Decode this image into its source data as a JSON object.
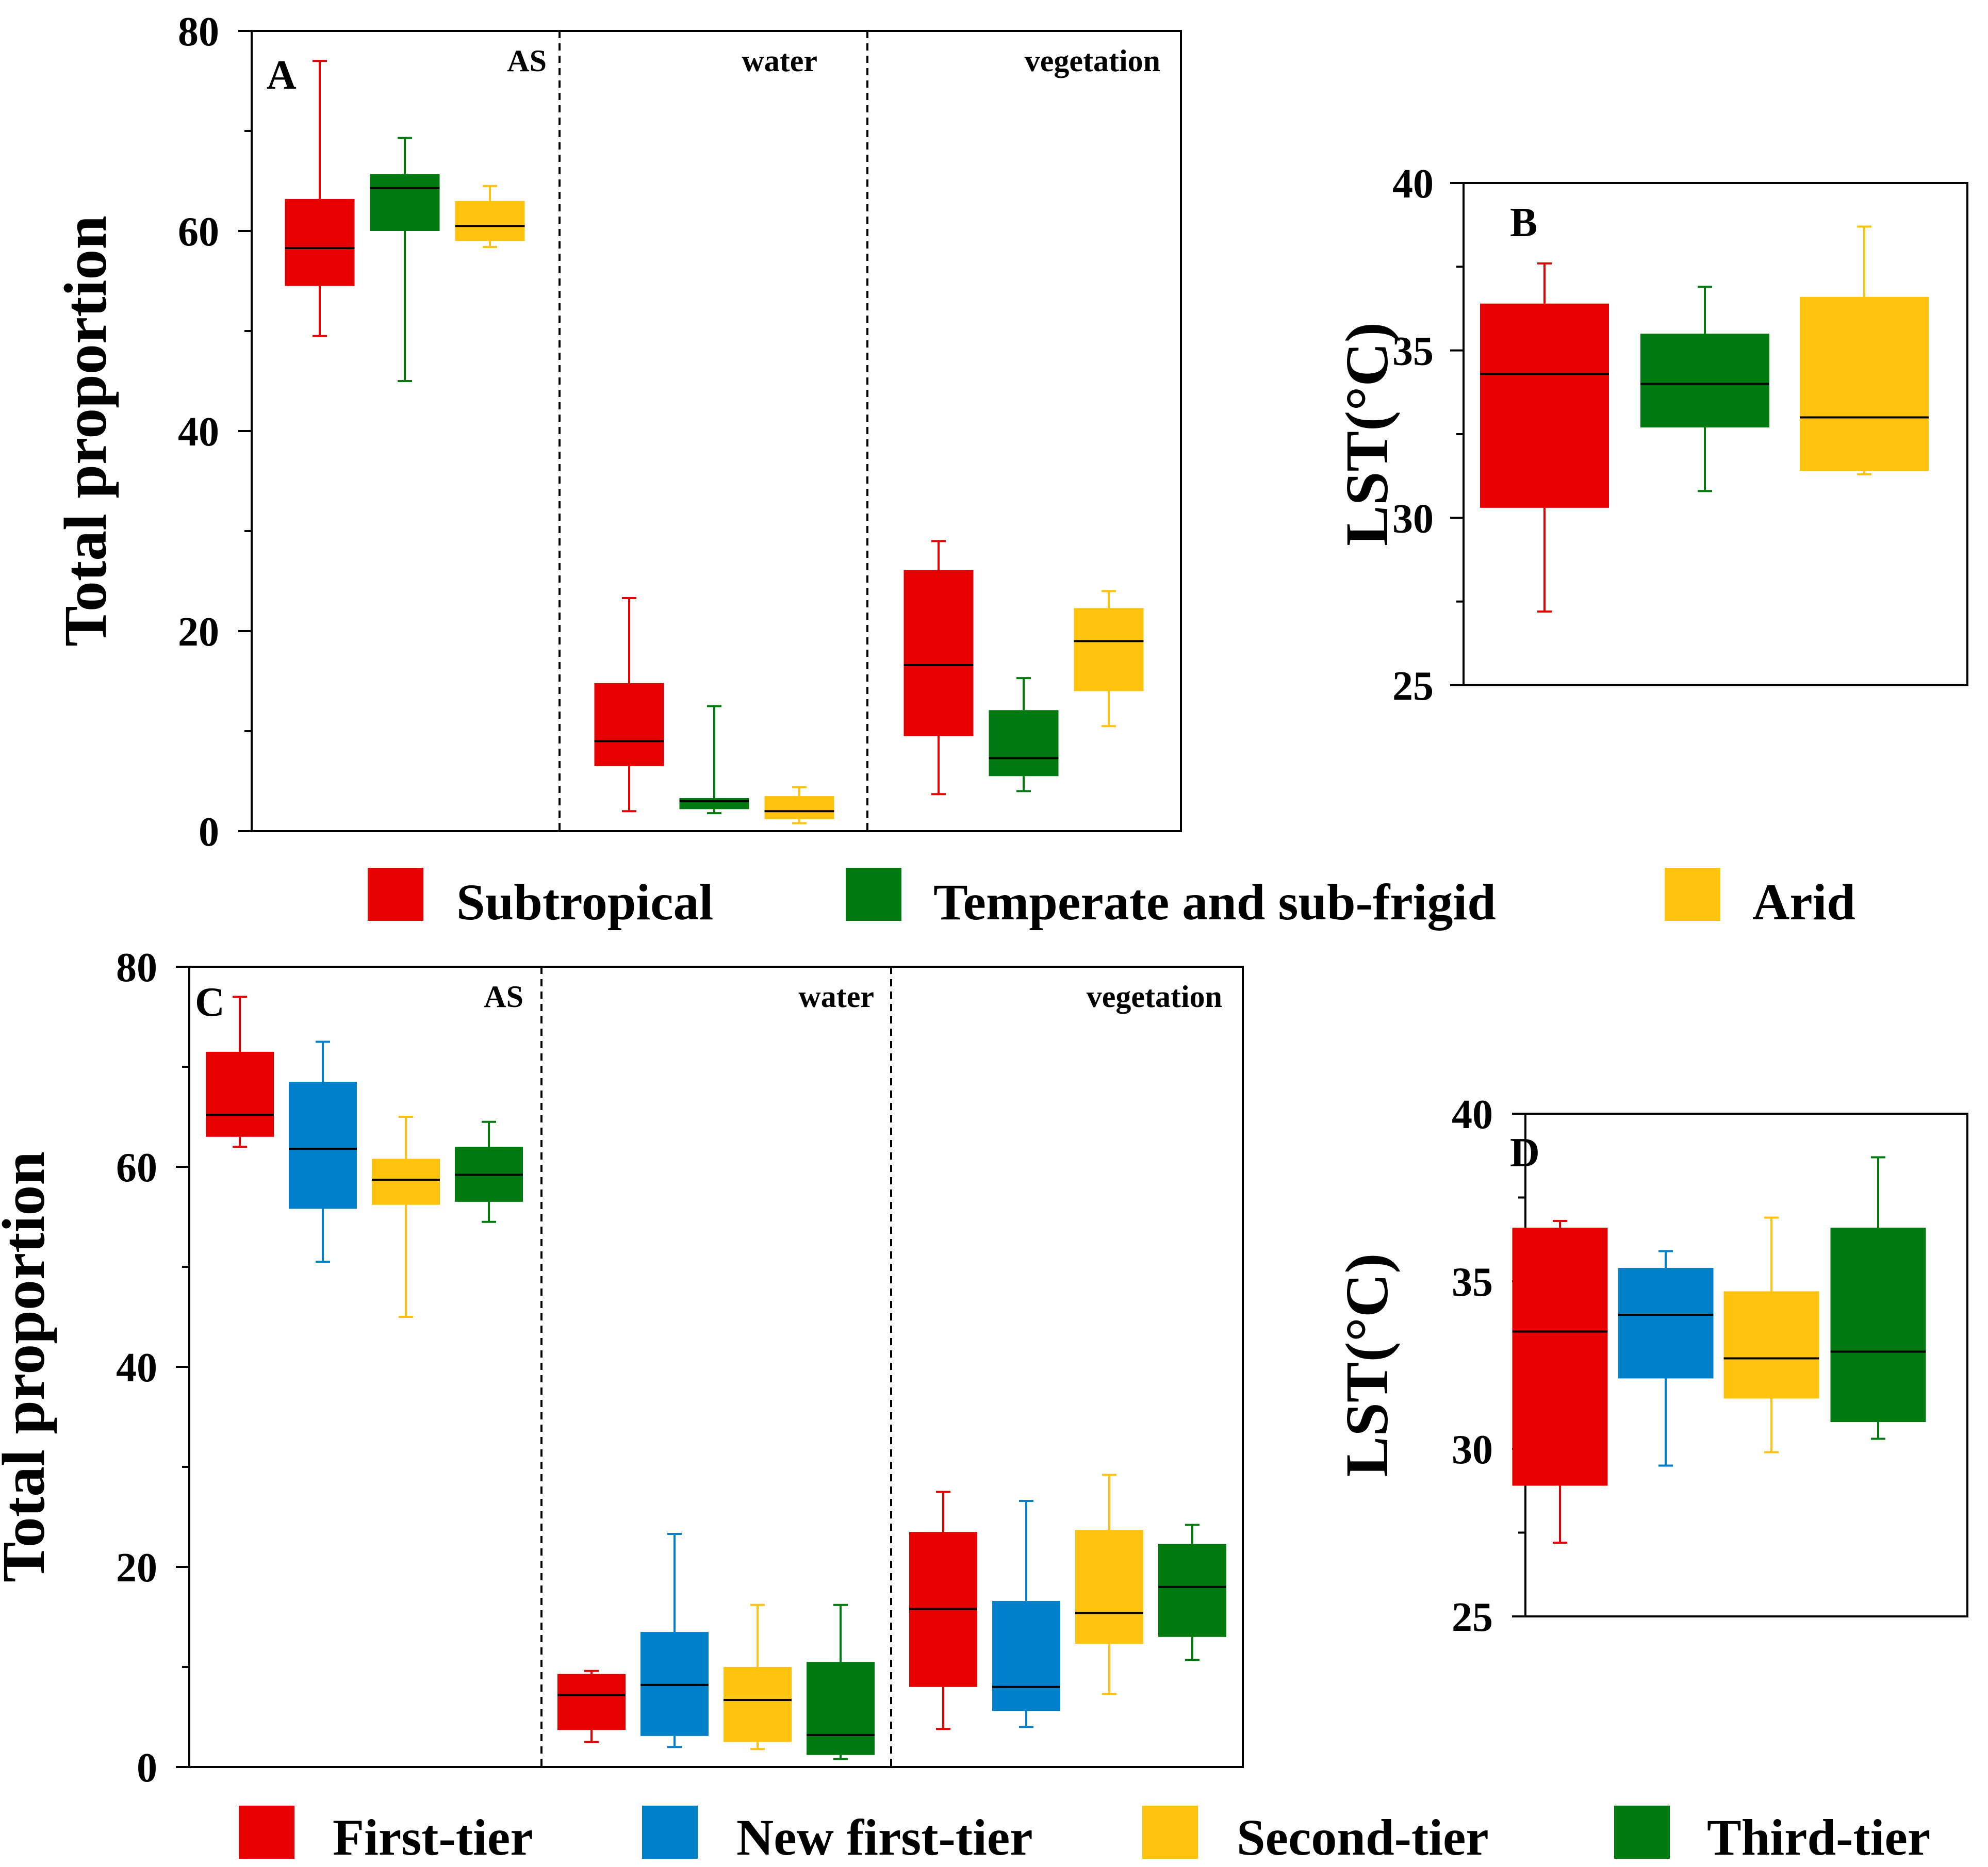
{
  "chart_data": [
    {
      "panel": "A",
      "type": "box",
      "ylabel": "Total proportion",
      "ylim": [
        0,
        80
      ],
      "yticks": [
        "0",
        "20",
        "40",
        "60",
        "80"
      ],
      "sections": [
        "AS",
        "water",
        "vegetation"
      ],
      "series": [
        {
          "name": "Subtropical",
          "color": "#E60000",
          "boxes": [
            {
              "section": "AS",
              "min": 49.5,
              "q1": 54.5,
              "median": 58.3,
              "q3": 63.2,
              "max": 77.0
            },
            {
              "section": "water",
              "min": 2.0,
              "q1": 6.5,
              "median": 9.0,
              "q3": 14.8,
              "max": 23.3
            },
            {
              "section": "vegetation",
              "min": 3.7,
              "q1": 9.5,
              "median": 16.6,
              "q3": 26.1,
              "max": 29.0
            }
          ]
        },
        {
          "name": "Temperate and sub-frigid",
          "color": "#007A0F",
          "boxes": [
            {
              "section": "AS",
              "min": 45.0,
              "q1": 60.0,
              "median": 64.3,
              "q3": 65.7,
              "max": 69.3
            },
            {
              "section": "water",
              "min": 1.8,
              "q1": 2.2,
              "median": 3.0,
              "q3": 3.3,
              "max": 12.5
            },
            {
              "section": "vegetation",
              "min": 4.0,
              "q1": 5.5,
              "median": 7.3,
              "q3": 12.1,
              "max": 15.3
            }
          ]
        },
        {
          "name": "Arid",
          "color": "#FFC20E",
          "boxes": [
            {
              "section": "AS",
              "min": 58.4,
              "q1": 59.0,
              "median": 60.5,
              "q3": 63.0,
              "max": 64.5
            },
            {
              "section": "water",
              "min": 0.8,
              "q1": 1.2,
              "median": 2.0,
              "q3": 3.5,
              "max": 4.4
            },
            {
              "section": "vegetation",
              "min": 10.5,
              "q1": 14.0,
              "median": 19.0,
              "q3": 22.3,
              "max": 24.0
            }
          ]
        }
      ]
    },
    {
      "panel": "B",
      "type": "box",
      "ylabel": "LST(°C)",
      "ylim": [
        25,
        40
      ],
      "yticks": [
        "25",
        "30",
        "35",
        "40"
      ],
      "series": [
        {
          "name": "Subtropical",
          "color": "#E60000",
          "box": {
            "min": 27.2,
            "q1": 30.3,
            "median": 34.3,
            "q3": 36.4,
            "max": 37.6
          }
        },
        {
          "name": "Temperate and sub-frigid",
          "color": "#007A0F",
          "box": {
            "min": 30.8,
            "q1": 32.7,
            "median": 34.0,
            "q3": 35.5,
            "max": 36.9
          }
        },
        {
          "name": "Arid",
          "color": "#FFC20E",
          "box": {
            "min": 31.3,
            "q1": 31.4,
            "median": 33.0,
            "q3": 36.6,
            "max": 38.7
          }
        }
      ]
    },
    {
      "panel": "C",
      "type": "box",
      "ylabel": "Total proportion",
      "ylim": [
        0,
        80
      ],
      "yticks": [
        "0",
        "20",
        "40",
        "60",
        "80"
      ],
      "sections": [
        "AS",
        "water",
        "vegetation"
      ],
      "series": [
        {
          "name": "First-tier",
          "color": "#E60000",
          "boxes": [
            {
              "section": "AS",
              "min": 62.0,
              "q1": 63.0,
              "median": 65.2,
              "q3": 71.5,
              "max": 77.0
            },
            {
              "section": "water",
              "min": 2.5,
              "q1": 3.7,
              "median": 7.2,
              "q3": 9.3,
              "max": 9.6
            },
            {
              "section": "vegetation",
              "min": 3.8,
              "q1": 8.0,
              "median": 15.8,
              "q3": 23.5,
              "max": 27.5
            }
          ]
        },
        {
          "name": "New first-tier",
          "color": "#0080C8",
          "boxes": [
            {
              "section": "AS",
              "min": 50.5,
              "q1": 55.8,
              "median": 61.8,
              "q3": 68.5,
              "max": 72.5
            },
            {
              "section": "water",
              "min": 2.0,
              "q1": 3.1,
              "median": 8.2,
              "q3": 13.5,
              "max": 23.3
            },
            {
              "section": "vegetation",
              "min": 4.0,
              "q1": 5.6,
              "median": 8.0,
              "q3": 16.6,
              "max": 26.6
            }
          ]
        },
        {
          "name": "Second-tier",
          "color": "#FFC20E",
          "boxes": [
            {
              "section": "AS",
              "min": 45.0,
              "q1": 56.2,
              "median": 58.7,
              "q3": 60.8,
              "max": 65.0
            },
            {
              "section": "water",
              "min": 1.8,
              "q1": 2.5,
              "median": 6.7,
              "q3": 10.0,
              "max": 16.2
            },
            {
              "section": "vegetation",
              "min": 7.3,
              "q1": 12.3,
              "median": 15.4,
              "q3": 23.7,
              "max": 29.2
            }
          ]
        },
        {
          "name": "Third-tier",
          "color": "#007A0F",
          "boxes": [
            {
              "section": "AS",
              "min": 54.5,
              "q1": 56.5,
              "median": 59.2,
              "q3": 62.0,
              "max": 64.5
            },
            {
              "section": "water",
              "min": 0.8,
              "q1": 1.2,
              "median": 3.2,
              "q3": 10.5,
              "max": 16.2
            },
            {
              "section": "vegetation",
              "min": 10.7,
              "q1": 13.0,
              "median": 18.0,
              "q3": 22.3,
              "max": 24.2
            }
          ]
        }
      ]
    },
    {
      "panel": "D",
      "type": "box",
      "ylabel": "LST(°C)",
      "ylim": [
        25,
        40
      ],
      "yticks": [
        "25",
        "30",
        "35",
        "40"
      ],
      "series": [
        {
          "name": "First-tier",
          "color": "#E60000",
          "box": {
            "min": 27.2,
            "q1": 28.9,
            "median": 33.5,
            "q3": 36.6,
            "max": 36.8
          }
        },
        {
          "name": "New first-tier",
          "color": "#0080C8",
          "box": {
            "min": 29.5,
            "q1": 32.1,
            "median": 34.0,
            "q3": 35.4,
            "max": 35.9
          }
        },
        {
          "name": "Second-tier",
          "color": "#FFC20E",
          "box": {
            "min": 29.9,
            "q1": 31.5,
            "median": 32.7,
            "q3": 34.7,
            "max": 36.9
          }
        },
        {
          "name": "Third-tier",
          "color": "#007A0F",
          "box": {
            "min": 30.3,
            "q1": 30.8,
            "median": 32.9,
            "q3": 36.6,
            "max": 38.7
          }
        }
      ]
    }
  ],
  "legend_top": [
    {
      "label": "Subtropical",
      "color": "#E60000"
    },
    {
      "label": "Temperate and sub-frigid",
      "color": "#007A0F"
    },
    {
      "label": "Arid",
      "color": "#FFC20E"
    }
  ],
  "legend_bottom": [
    {
      "label": "First-tier",
      "color": "#E60000"
    },
    {
      "label": "New first-tier",
      "color": "#0080C8"
    },
    {
      "label": "Second-tier",
      "color": "#FFC20E"
    },
    {
      "label": "Third-tier",
      "color": "#007A0F"
    }
  ]
}
